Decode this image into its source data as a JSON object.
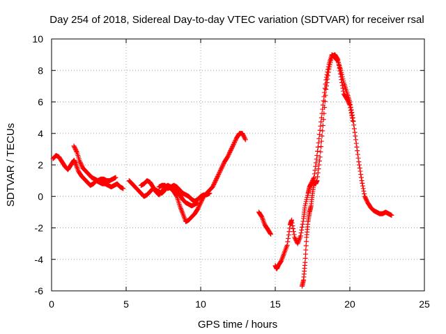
{
  "chart_data": {
    "type": "scatter",
    "title": "Day 254 of 2018, Sidereal Day-to-day VTEC variation (SDTVAR) for receiver rsal",
    "xlabel": "GPS time / hours",
    "ylabel": "SDTVAR / TECUs",
    "xlim": [
      0,
      25
    ],
    "ylim": [
      -6,
      10
    ],
    "xticks": [
      0,
      5,
      10,
      15,
      20,
      25
    ],
    "yticks": [
      -6,
      -4,
      -2,
      0,
      2,
      4,
      6,
      8,
      10
    ],
    "grid": true,
    "marker": "+",
    "color": "#ff0000",
    "series": [
      {
        "name": "SDTVAR",
        "segments": [
          [
            [
              0.1,
              2.4
            ],
            [
              0.3,
              2.6
            ],
            [
              0.5,
              2.5
            ],
            [
              0.7,
              2.2
            ],
            [
              0.9,
              1.9
            ],
            [
              1.1,
              1.7
            ],
            [
              1.3,
              2.0
            ],
            [
              1.5,
              2.3
            ],
            [
              1.6,
              2.1
            ],
            [
              1.8,
              1.6
            ],
            [
              2.0,
              1.3
            ],
            [
              2.2,
              1.1
            ],
            [
              2.4,
              0.9
            ],
            [
              2.6,
              0.7
            ],
            [
              2.8,
              0.8
            ],
            [
              3.0,
              1.0
            ],
            [
              3.2,
              0.9
            ],
            [
              3.4,
              0.8
            ],
            [
              3.6,
              0.8
            ],
            [
              3.8,
              0.7
            ],
            [
              4.0,
              0.6
            ],
            [
              4.2,
              0.7
            ],
            [
              4.4,
              0.8
            ],
            [
              4.6,
              0.6
            ],
            [
              4.8,
              0.5
            ]
          ],
          [
            [
              1.5,
              3.2
            ],
            [
              1.7,
              2.8
            ],
            [
              1.9,
              2.2
            ],
            [
              2.1,
              1.8
            ],
            [
              2.3,
              1.6
            ],
            [
              2.5,
              1.4
            ],
            [
              2.7,
              1.2
            ],
            [
              2.9,
              1.1
            ],
            [
              3.1,
              1.0
            ],
            [
              3.3,
              1.1
            ],
            [
              3.5,
              1.1
            ],
            [
              3.7,
              1.0
            ],
            [
              3.9,
              1.0
            ],
            [
              4.1,
              1.1
            ],
            [
              4.3,
              1.2
            ]
          ],
          [
            [
              5.2,
              1.0
            ],
            [
              5.4,
              0.8
            ],
            [
              5.6,
              0.6
            ],
            [
              5.8,
              0.4
            ],
            [
              6.0,
              0.2
            ],
            [
              6.2,
              0.0
            ],
            [
              6.4,
              0.1
            ],
            [
              6.6,
              0.3
            ],
            [
              6.8,
              0.5
            ],
            [
              7.0,
              0.4
            ],
            [
              7.2,
              0.3
            ],
            [
              7.4,
              0.2
            ],
            [
              7.6,
              0.4
            ],
            [
              7.8,
              0.6
            ],
            [
              8.0,
              0.5
            ],
            [
              8.2,
              0.3
            ],
            [
              8.4,
              0.0
            ],
            [
              8.6,
              -0.6
            ],
            [
              8.8,
              -1.1
            ],
            [
              9.0,
              -1.6
            ],
            [
              9.2,
              -1.5
            ],
            [
              9.4,
              -1.3
            ],
            [
              9.6,
              -1.1
            ],
            [
              9.8,
              -0.8
            ],
            [
              10.0,
              -0.4
            ],
            [
              10.2,
              0.0
            ],
            [
              10.4,
              0.2
            ],
            [
              10.6,
              0.4
            ],
            [
              10.8,
              0.6
            ],
            [
              11.0,
              1.0
            ],
            [
              11.2,
              1.4
            ],
            [
              11.4,
              1.8
            ],
            [
              11.6,
              2.2
            ],
            [
              11.8,
              2.5
            ],
            [
              12.0,
              2.9
            ],
            [
              12.2,
              3.3
            ],
            [
              12.4,
              3.7
            ],
            [
              12.6,
              4.0
            ],
            [
              12.8,
              4.0
            ],
            [
              13.0,
              3.6
            ]
          ],
          [
            [
              6.0,
              0.7
            ],
            [
              6.2,
              0.8
            ],
            [
              6.4,
              1.0
            ],
            [
              6.6,
              0.9
            ],
            [
              6.8,
              0.6
            ],
            [
              7.0,
              0.3
            ],
            [
              7.2,
              0.1
            ],
            [
              7.4,
              0.3
            ],
            [
              7.6,
              0.6
            ],
            [
              7.8,
              0.7
            ],
            [
              8.0,
              0.6
            ],
            [
              8.2,
              0.6
            ],
            [
              8.4,
              0.4
            ],
            [
              8.6,
              0.1
            ],
            [
              8.8,
              -0.2
            ],
            [
              9.0,
              -0.4
            ],
            [
              9.2,
              -0.5
            ],
            [
              9.4,
              -0.6
            ],
            [
              9.6,
              -0.5
            ],
            [
              9.8,
              -0.4
            ]
          ],
          [
            [
              7.2,
              0.6
            ],
            [
              7.4,
              0.7
            ],
            [
              7.6,
              0.7
            ],
            [
              7.8,
              0.5
            ],
            [
              8.0,
              0.6
            ],
            [
              8.2,
              0.7
            ],
            [
              8.4,
              0.6
            ],
            [
              8.6,
              0.4
            ],
            [
              8.8,
              0.2
            ],
            [
              9.0,
              0.1
            ],
            [
              9.2,
              0.0
            ],
            [
              9.4,
              -0.2
            ],
            [
              9.6,
              -0.3
            ],
            [
              9.8,
              -0.2
            ],
            [
              10.0,
              0.0
            ],
            [
              10.2,
              0.1
            ],
            [
              10.4,
              0.1
            ],
            [
              10.6,
              0.2
            ]
          ],
          [
            [
              13.9,
              -1.0
            ],
            [
              14.1,
              -1.3
            ],
            [
              14.3,
              -1.8
            ],
            [
              14.5,
              -2.1
            ],
            [
              14.7,
              -2.4
            ]
          ],
          [
            [
              15.0,
              -4.4
            ],
            [
              15.1,
              -4.6
            ],
            [
              15.2,
              -4.4
            ],
            [
              15.4,
              -4.1
            ],
            [
              15.6,
              -3.6
            ],
            [
              15.8,
              -3.1
            ],
            [
              16.0,
              -1.8
            ],
            [
              16.1,
              -1.5
            ],
            [
              16.3,
              -2.6
            ],
            [
              16.5,
              -3.0
            ],
            [
              16.7,
              -2.5
            ],
            [
              16.9,
              -1.4
            ],
            [
              17.0,
              -0.6
            ],
            [
              17.2,
              0.2
            ],
            [
              17.3,
              0.6
            ],
            [
              17.4,
              0.8
            ],
            [
              17.6,
              1.2
            ],
            [
              17.8,
              2.6
            ],
            [
              18.0,
              4.2
            ],
            [
              18.2,
              5.8
            ],
            [
              18.4,
              7.4
            ],
            [
              18.6,
              8.4
            ],
            [
              18.8,
              9.0
            ],
            [
              19.0,
              8.8
            ],
            [
              19.2,
              8.6
            ],
            [
              19.4,
              8.0
            ],
            [
              19.6,
              7.2
            ],
            [
              19.8,
              6.6
            ],
            [
              20.0,
              6.0
            ],
            [
              20.2,
              5.0
            ],
            [
              20.4,
              3.6
            ],
            [
              20.6,
              2.2
            ],
            [
              20.8,
              1.0
            ],
            [
              21.0,
              0.0
            ],
            [
              21.2,
              -0.4
            ],
            [
              21.4,
              -0.7
            ],
            [
              21.6,
              -0.9
            ],
            [
              21.8,
              -1.0
            ],
            [
              22.0,
              -1.1
            ],
            [
              22.2,
              -1.1
            ],
            [
              22.4,
              -1.0
            ],
            [
              22.6,
              -1.1
            ],
            [
              22.8,
              -1.2
            ]
          ],
          [
            [
              16.8,
              -5.7
            ],
            [
              16.9,
              -5.3
            ],
            [
              17.0,
              -4.2
            ],
            [
              17.1,
              -2.6
            ],
            [
              17.2,
              -1.6
            ],
            [
              17.3,
              -1.0
            ],
            [
              17.4,
              -0.6
            ],
            [
              17.5,
              0.2
            ],
            [
              17.6,
              0.9
            ],
            [
              17.7,
              0.8
            ],
            [
              17.8,
              1.0
            ],
            [
              18.0,
              2.5
            ],
            [
              18.2,
              4.5
            ],
            [
              18.4,
              6.8
            ],
            [
              18.6,
              8.1
            ],
            [
              18.8,
              8.9
            ],
            [
              19.0,
              9.0
            ],
            [
              19.2,
              8.7
            ],
            [
              19.4,
              7.6
            ],
            [
              19.6,
              6.5
            ],
            [
              19.8,
              6.2
            ],
            [
              20.0,
              5.8
            ],
            [
              20.2,
              4.8
            ]
          ]
        ]
      }
    ]
  }
}
